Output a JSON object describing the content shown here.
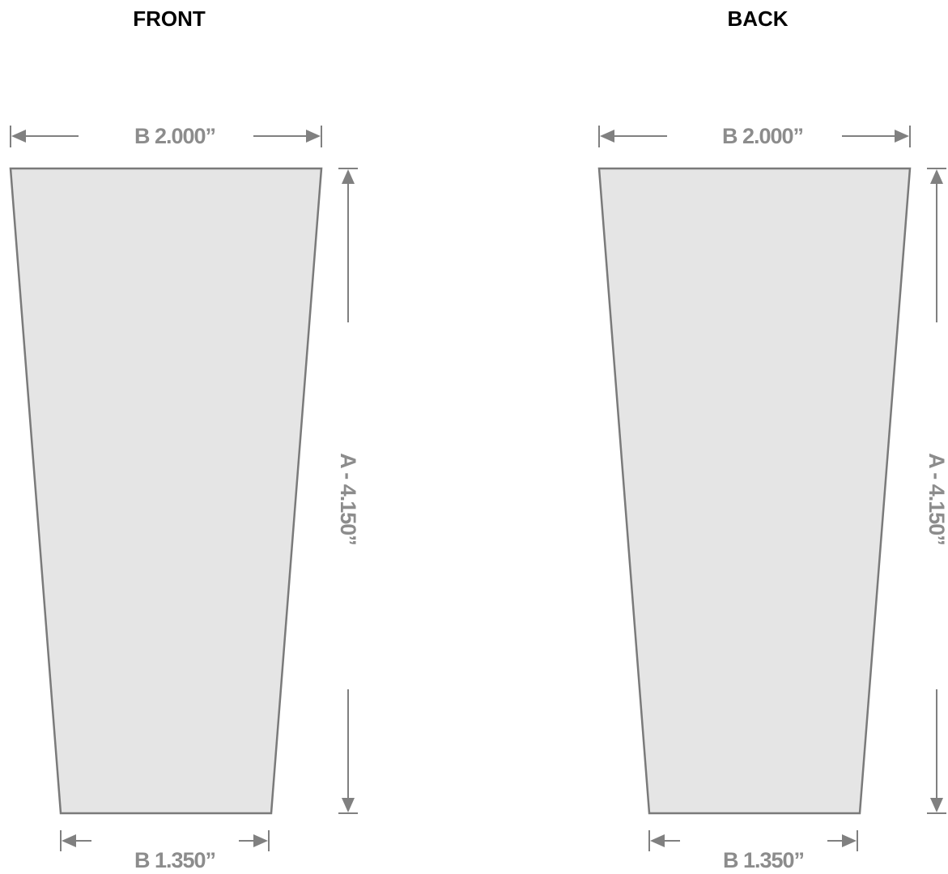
{
  "colors": {
    "shape_fill": "#e5e5e5",
    "shape_stroke": "#7a7a7a",
    "dimension": "#808080",
    "dimension_text": "#8c8c8c",
    "title_text": "#000000"
  },
  "panels": [
    {
      "id": "front",
      "title": "FRONT",
      "top_width_label": "B 2.000”",
      "bottom_width_label": "B 1.350”",
      "height_label": "A - 4.150”"
    },
    {
      "id": "back",
      "title": "BACK",
      "top_width_label": "B 2.000”",
      "bottom_width_label": "B 1.350”",
      "height_label": "A - 4.150”"
    }
  ]
}
